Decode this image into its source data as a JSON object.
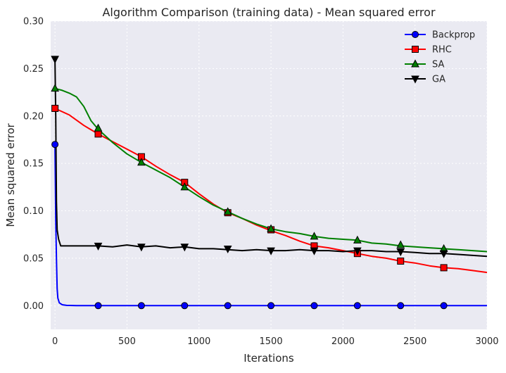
{
  "chart_data": {
    "type": "line",
    "title": "Algorithm Comparison (training data) - Mean squared error",
    "xlabel": "Iterations",
    "ylabel": "Mean squared error",
    "xlim": [
      -30,
      3000
    ],
    "ylim": [
      -0.025,
      0.3
    ],
    "xticks": [
      0,
      500,
      1000,
      1500,
      2000,
      2500,
      3000
    ],
    "xtick_labels": [
      "0",
      "500",
      "1000",
      "1500",
      "2000",
      "2500",
      "3000"
    ],
    "yticks": [
      0.0,
      0.05,
      0.1,
      0.15,
      0.2,
      0.25,
      0.3
    ],
    "ytick_labels": [
      "0.00",
      "0.05",
      "0.10",
      "0.15",
      "0.20",
      "0.25",
      "0.30"
    ],
    "grid": true,
    "legend_position": "top-right",
    "series": [
      {
        "name": "Backprop",
        "color": "#0000ff",
        "marker": "circle",
        "line": [
          [
            0,
            0.17
          ],
          [
            5,
            0.09
          ],
          [
            10,
            0.05
          ],
          [
            15,
            0.018
          ],
          [
            20,
            0.008
          ],
          [
            30,
            0.003
          ],
          [
            50,
            0.001
          ],
          [
            80,
            0.0003
          ],
          [
            150,
            0.0
          ],
          [
            3000,
            0.0
          ]
        ],
        "markers": [
          [
            0,
            0.17
          ],
          [
            300,
            0.0
          ],
          [
            600,
            0.0
          ],
          [
            900,
            0.0
          ],
          [
            1200,
            0.0
          ],
          [
            1500,
            0.0
          ],
          [
            1800,
            0.0
          ],
          [
            2100,
            0.0
          ],
          [
            2400,
            0.0
          ],
          [
            2700,
            0.0
          ]
        ]
      },
      {
        "name": "RHC",
        "color": "#ff0000",
        "marker": "square",
        "line": [
          [
            0,
            0.208
          ],
          [
            100,
            0.201
          ],
          [
            200,
            0.19
          ],
          [
            300,
            0.181
          ],
          [
            400,
            0.173
          ],
          [
            500,
            0.165
          ],
          [
            600,
            0.157
          ],
          [
            700,
            0.147
          ],
          [
            800,
            0.138
          ],
          [
            900,
            0.13
          ],
          [
            1000,
            0.118
          ],
          [
            1100,
            0.107
          ],
          [
            1200,
            0.098
          ],
          [
            1300,
            0.092
          ],
          [
            1400,
            0.085
          ],
          [
            1500,
            0.079
          ],
          [
            1600,
            0.074
          ],
          [
            1700,
            0.068
          ],
          [
            1800,
            0.063
          ],
          [
            1900,
            0.061
          ],
          [
            2000,
            0.058
          ],
          [
            2100,
            0.055
          ],
          [
            2200,
            0.052
          ],
          [
            2300,
            0.05
          ],
          [
            2400,
            0.047
          ],
          [
            2500,
            0.045
          ],
          [
            2600,
            0.042
          ],
          [
            2700,
            0.04
          ],
          [
            2800,
            0.039
          ],
          [
            2900,
            0.037
          ],
          [
            3000,
            0.035
          ]
        ],
        "markers": [
          [
            0,
            0.208
          ],
          [
            300,
            0.181
          ],
          [
            600,
            0.157
          ],
          [
            900,
            0.13
          ],
          [
            1200,
            0.098
          ],
          [
            1500,
            0.08
          ],
          [
            1800,
            0.063
          ],
          [
            2100,
            0.055
          ],
          [
            2400,
            0.047
          ],
          [
            2700,
            0.04
          ]
        ]
      },
      {
        "name": "SA",
        "color": "#008000",
        "marker": "triangle-up",
        "line": [
          [
            0,
            0.229
          ],
          [
            50,
            0.227
          ],
          [
            100,
            0.224
          ],
          [
            150,
            0.22
          ],
          [
            200,
            0.21
          ],
          [
            250,
            0.195
          ],
          [
            300,
            0.186
          ],
          [
            400,
            0.172
          ],
          [
            500,
            0.16
          ],
          [
            600,
            0.151
          ],
          [
            700,
            0.143
          ],
          [
            800,
            0.135
          ],
          [
            900,
            0.125
          ],
          [
            1000,
            0.115
          ],
          [
            1100,
            0.106
          ],
          [
            1200,
            0.099
          ],
          [
            1300,
            0.092
          ],
          [
            1400,
            0.086
          ],
          [
            1500,
            0.081
          ],
          [
            1600,
            0.078
          ],
          [
            1700,
            0.076
          ],
          [
            1800,
            0.073
          ],
          [
            1900,
            0.071
          ],
          [
            2000,
            0.07
          ],
          [
            2100,
            0.069
          ],
          [
            2200,
            0.066
          ],
          [
            2300,
            0.065
          ],
          [
            2400,
            0.063
          ],
          [
            2500,
            0.062
          ],
          [
            2600,
            0.061
          ],
          [
            2700,
            0.06
          ],
          [
            2800,
            0.059
          ],
          [
            2900,
            0.058
          ],
          [
            3000,
            0.057
          ]
        ],
        "markers": [
          [
            0,
            0.229
          ],
          [
            300,
            0.187
          ],
          [
            600,
            0.151
          ],
          [
            900,
            0.125
          ],
          [
            1200,
            0.099
          ],
          [
            1500,
            0.081
          ],
          [
            1800,
            0.073
          ],
          [
            2100,
            0.069
          ],
          [
            2400,
            0.064
          ],
          [
            2700,
            0.06
          ]
        ]
      },
      {
        "name": "GA",
        "color": "#000000",
        "marker": "triangle-down",
        "line": [
          [
            0,
            0.26
          ],
          [
            5,
            0.2
          ],
          [
            10,
            0.11
          ],
          [
            15,
            0.08
          ],
          [
            25,
            0.07
          ],
          [
            40,
            0.063
          ],
          [
            100,
            0.063
          ],
          [
            200,
            0.063
          ],
          [
            300,
            0.063
          ],
          [
            400,
            0.062
          ],
          [
            500,
            0.064
          ],
          [
            600,
            0.062
          ],
          [
            700,
            0.063
          ],
          [
            800,
            0.061
          ],
          [
            900,
            0.062
          ],
          [
            1000,
            0.06
          ],
          [
            1100,
            0.06
          ],
          [
            1200,
            0.059
          ],
          [
            1300,
            0.058
          ],
          [
            1400,
            0.059
          ],
          [
            1500,
            0.058
          ],
          [
            1600,
            0.058
          ],
          [
            1700,
            0.059
          ],
          [
            1800,
            0.058
          ],
          [
            1900,
            0.058
          ],
          [
            2000,
            0.057
          ],
          [
            2100,
            0.058
          ],
          [
            2200,
            0.058
          ],
          [
            2300,
            0.057
          ],
          [
            2400,
            0.057
          ],
          [
            2500,
            0.056
          ],
          [
            2600,
            0.055
          ],
          [
            2700,
            0.055
          ],
          [
            2800,
            0.054
          ],
          [
            2900,
            0.053
          ],
          [
            3000,
            0.052
          ]
        ],
        "markers": [
          [
            0,
            0.26
          ],
          [
            300,
            0.063
          ],
          [
            600,
            0.062
          ],
          [
            900,
            0.062
          ],
          [
            1200,
            0.06
          ],
          [
            1500,
            0.058
          ],
          [
            1800,
            0.058
          ],
          [
            2100,
            0.058
          ],
          [
            2400,
            0.057
          ],
          [
            2700,
            0.055
          ]
        ]
      }
    ]
  }
}
